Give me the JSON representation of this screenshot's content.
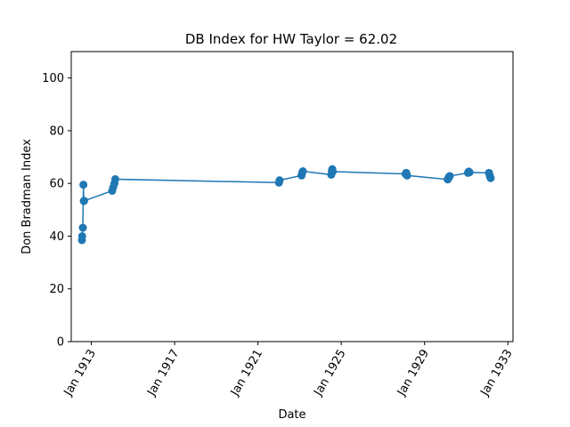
{
  "chart_data": {
    "type": "line",
    "title": "DB Index for HW Taylor = 62.02",
    "xlabel": "Date",
    "ylabel": "Don Bradman Index",
    "xlim": [
      "1912-01-15",
      "1933-04-01"
    ],
    "ylim": [
      0,
      110
    ],
    "grid": false,
    "xticks": [
      {
        "date": "1913-01-01",
        "label": "Jan 1913"
      },
      {
        "date": "1917-01-01",
        "label": "Jan 1917"
      },
      {
        "date": "1921-01-01",
        "label": "Jan 1921"
      },
      {
        "date": "1925-01-01",
        "label": "Jan 1925"
      },
      {
        "date": "1929-01-01",
        "label": "Jan 1929"
      },
      {
        "date": "1933-01-01",
        "label": "Jan 1933"
      }
    ],
    "yticks": [
      0,
      20,
      40,
      60,
      80,
      100
    ],
    "color": "#1f77b4",
    "series": [
      {
        "x": [
          "1912-07-20",
          "1912-07-25",
          "1912-08-05",
          "1912-08-15",
          "1912-08-22",
          "1912-08-28",
          "1914-01-02",
          "1914-01-20",
          "1914-02-10",
          "1914-02-25",
          "1922-01-05",
          "1922-01-15",
          "1923-02-05",
          "1923-02-15",
          "1923-02-28",
          "1924-07-10",
          "1924-07-20",
          "1924-07-28",
          "1924-08-05",
          "1928-02-01",
          "1928-02-15",
          "1928-03-01",
          "1930-02-10",
          "1930-02-25",
          "1930-03-05",
          "1930-03-20",
          "1931-02-01",
          "1931-02-15",
          "1931-03-01",
          "1932-02-05",
          "1932-02-15",
          "1932-02-25",
          "1932-03-05"
        ],
        "y": [
          38.5,
          40.0,
          43.2,
          59.5,
          53.3,
          53.4,
          57.2,
          58.5,
          60.0,
          61.6,
          60.3,
          61.2,
          63.0,
          64.0,
          64.6,
          63.3,
          64.8,
          65.4,
          64.5,
          63.6,
          64.0,
          63.0,
          61.5,
          62.0,
          62.5,
          62.8,
          64.0,
          64.5,
          64.2,
          64.0,
          63.2,
          62.5,
          62.02
        ]
      }
    ]
  }
}
